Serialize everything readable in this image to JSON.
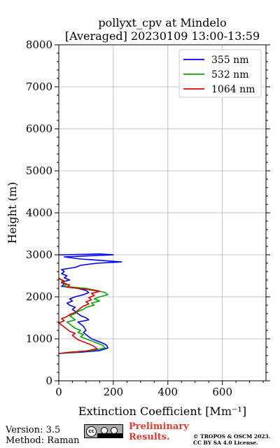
{
  "colors": {
    "355 nm": "#0000ff",
    "532 nm": "#00aa00",
    "1064 nm": "#dd0000"
  },
  "footer": {
    "version": "Version: 3.5",
    "method": "Method: Raman",
    "preliminary_line1": "Preliminary",
    "preliminary_line2": "Results.",
    "copyright_line1": "© TROPOS & OSCM 2023.",
    "copyright_line2": "CC BY SA 4.0 License.",
    "license_icon": "cc-by-sa-icon"
  },
  "chart_data": {
    "type": "line",
    "title": "pollyxt_cpv at Mindelo",
    "subtitle": "[Averaged] 20230109 13:00-13:59",
    "xlabel": "Extinction Coefficient [Mm⁻¹]",
    "ylabel": "Height (m)",
    "xlim": [
      0,
      760
    ],
    "ylim": [
      0,
      8000
    ],
    "x_ticks": [
      0,
      200,
      400,
      600
    ],
    "y_ticks": [
      0,
      1000,
      2000,
      3000,
      4000,
      5000,
      6000,
      7000,
      8000
    ],
    "grid": true,
    "legend_position": "top-right",
    "series": [
      {
        "name": "355 nm",
        "points": [
          [
            0,
            650
          ],
          [
            80,
            680
          ],
          [
            150,
            720
          ],
          [
            180,
            780
          ],
          [
            175,
            850
          ],
          [
            160,
            900
          ],
          [
            140,
            950
          ],
          [
            120,
            1000
          ],
          [
            110,
            1050
          ],
          [
            100,
            1100
          ],
          [
            90,
            1150
          ],
          [
            100,
            1200
          ],
          [
            95,
            1250
          ],
          [
            90,
            1300
          ],
          [
            80,
            1350
          ],
          [
            70,
            1400
          ],
          [
            110,
            1450
          ],
          [
            100,
            1500
          ],
          [
            80,
            1550
          ],
          [
            70,
            1600
          ],
          [
            60,
            1650
          ],
          [
            50,
            1700
          ],
          [
            60,
            1750
          ],
          [
            40,
            1800
          ],
          [
            30,
            1850
          ],
          [
            50,
            1900
          ],
          [
            40,
            1950
          ],
          [
            60,
            2000
          ],
          [
            90,
            2050
          ],
          [
            110,
            2100
          ],
          [
            100,
            2150
          ],
          [
            70,
            2200
          ],
          [
            10,
            2250
          ],
          [
            20,
            2300
          ],
          [
            10,
            2350
          ],
          [
            40,
            2400
          ],
          [
            20,
            2450
          ],
          [
            30,
            2500
          ],
          [
            10,
            2550
          ],
          [
            20,
            2600
          ],
          [
            10,
            2650
          ],
          [
            60,
            2700
          ],
          [
            80,
            2750
          ],
          [
            140,
            2800
          ],
          [
            230,
            2830
          ],
          [
            170,
            2860
          ],
          [
            80,
            2900
          ],
          [
            20,
            2950
          ],
          [
            200,
            3000
          ],
          [
            150,
            3020
          ],
          [
            20,
            3000
          ],
          [
            0,
            3000
          ]
        ]
      },
      {
        "name": "532 nm",
        "points": [
          [
            0,
            650
          ],
          [
            60,
            680
          ],
          [
            120,
            720
          ],
          [
            170,
            780
          ],
          [
            160,
            850
          ],
          [
            140,
            900
          ],
          [
            120,
            950
          ],
          [
            100,
            1000
          ],
          [
            80,
            1050
          ],
          [
            90,
            1100
          ],
          [
            70,
            1150
          ],
          [
            80,
            1200
          ],
          [
            60,
            1250
          ],
          [
            50,
            1300
          ],
          [
            40,
            1350
          ],
          [
            30,
            1400
          ],
          [
            60,
            1450
          ],
          [
            50,
            1500
          ],
          [
            40,
            1550
          ],
          [
            60,
            1600
          ],
          [
            70,
            1650
          ],
          [
            90,
            1700
          ],
          [
            100,
            1750
          ],
          [
            130,
            1800
          ],
          [
            120,
            1850
          ],
          [
            150,
            1900
          ],
          [
            130,
            1950
          ],
          [
            150,
            2000
          ],
          [
            180,
            2050
          ],
          [
            170,
            2100
          ],
          [
            140,
            2150
          ],
          [
            100,
            2200
          ],
          [
            20,
            2250
          ],
          [
            30,
            2300
          ],
          [
            15,
            2350
          ],
          [
            10,
            2400
          ],
          [
            0,
            2450
          ]
        ]
      },
      {
        "name": "1064 nm",
        "points": [
          [
            0,
            650
          ],
          [
            40,
            680
          ],
          [
            100,
            710
          ],
          [
            140,
            760
          ],
          [
            130,
            820
          ],
          [
            110,
            880
          ],
          [
            90,
            930
          ],
          [
            70,
            980
          ],
          [
            60,
            1030
          ],
          [
            50,
            1080
          ],
          [
            60,
            1130
          ],
          [
            40,
            1180
          ],
          [
            30,
            1230
          ],
          [
            20,
            1280
          ],
          [
            10,
            1330
          ],
          [
            0,
            1380
          ],
          [
            20,
            1430
          ],
          [
            10,
            1480
          ],
          [
            30,
            1530
          ],
          [
            40,
            1580
          ],
          [
            60,
            1630
          ],
          [
            70,
            1680
          ],
          [
            80,
            1730
          ],
          [
            90,
            1780
          ],
          [
            110,
            1830
          ],
          [
            100,
            1880
          ],
          [
            120,
            1930
          ],
          [
            110,
            1980
          ],
          [
            130,
            2030
          ],
          [
            120,
            2080
          ],
          [
            150,
            2130
          ],
          [
            100,
            2180
          ],
          [
            30,
            2230
          ],
          [
            40,
            2280
          ],
          [
            10,
            2330
          ],
          [
            20,
            2380
          ],
          [
            0,
            2430
          ]
        ]
      }
    ]
  }
}
